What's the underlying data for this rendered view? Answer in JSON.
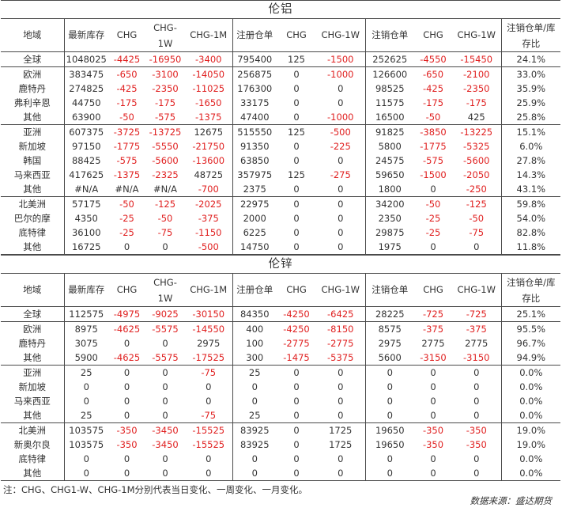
{
  "tables": [
    {
      "title": "伦铝",
      "headers": [
        "地域",
        "最新库存",
        "CHG",
        "CHG-1W",
        "CHG-1M",
        "注册仓单",
        "CHG",
        "CHG-1W",
        "注销仓单",
        "CHG",
        "CHG-1W",
        "注销仓单/库存比"
      ],
      "groups": [
        [
          [
            "全球",
            "1048025",
            "-4425",
            "-16950",
            "-3400",
            "795400",
            "125",
            "-1500",
            "252625",
            "-4550",
            "-15450",
            "24.1%"
          ]
        ],
        [
          [
            "欧洲",
            "383475",
            "-650",
            "-3100",
            "-14050",
            "256875",
            "0",
            "-1000",
            "126600",
            "-650",
            "-2100",
            "33.0%"
          ],
          [
            "鹿特丹",
            "274825",
            "-425",
            "-2350",
            "-11025",
            "176300",
            "0",
            "0",
            "98525",
            "-425",
            "-2350",
            "35.9%"
          ],
          [
            "弗利辛恩",
            "44750",
            "-175",
            "-175",
            "-1650",
            "33175",
            "0",
            "0",
            "11575",
            "-175",
            "-175",
            "25.9%"
          ],
          [
            "其他",
            "63900",
            "-50",
            "-575",
            "-1375",
            "47400",
            "0",
            "-1000",
            "16500",
            "-50",
            "425",
            "25.8%"
          ]
        ],
        [
          [
            "亚洲",
            "607375",
            "-3725",
            "-13725",
            "12675",
            "515550",
            "125",
            "-500",
            "91825",
            "-3850",
            "-13225",
            "15.1%"
          ],
          [
            "新加坡",
            "97150",
            "-1775",
            "-5550",
            "-21750",
            "91350",
            "0",
            "-225",
            "5800",
            "-1775",
            "-5325",
            "6.0%"
          ],
          [
            "韩国",
            "88425",
            "-575",
            "-5600",
            "-13600",
            "63850",
            "0",
            "0",
            "24575",
            "-575",
            "-5600",
            "27.8%"
          ],
          [
            "马来西亚",
            "417625",
            "-1375",
            "-2325",
            "48725",
            "357975",
            "125",
            "-275",
            "59650",
            "-1500",
            "-2050",
            "14.3%"
          ],
          [
            "其他",
            "#N/A",
            "#N/A",
            "#N/A",
            "-700",
            "2375",
            "0",
            "0",
            "1800",
            "0",
            "-250",
            "43.1%"
          ]
        ],
        [
          [
            "北美洲",
            "57175",
            "-50",
            "-125",
            "-2025",
            "22975",
            "0",
            "0",
            "34200",
            "-50",
            "-125",
            "59.8%"
          ],
          [
            "巴尔的摩",
            "4350",
            "-25",
            "-50",
            "-375",
            "2000",
            "0",
            "0",
            "2350",
            "-25",
            "-50",
            "54.0%"
          ],
          [
            "底特律",
            "36100",
            "-25",
            "-75",
            "-1150",
            "6225",
            "0",
            "0",
            "29875",
            "-25",
            "-75",
            "82.8%"
          ],
          [
            "其他",
            "16725",
            "0",
            "0",
            "-500",
            "14750",
            "0",
            "0",
            "1975",
            "0",
            "0",
            "11.8%"
          ]
        ]
      ]
    },
    {
      "title": "伦锌",
      "headers": [
        "地域",
        "最新库存",
        "CHG",
        "CHG-1W",
        "CHG-1M",
        "注册仓单",
        "CHG",
        "CHG-1W",
        "注销仓单",
        "CHG",
        "CHG-1W",
        "注销仓单/库存比"
      ],
      "groups": [
        [
          [
            "全球",
            "112575",
            "-4975",
            "-9025",
            "-30150",
            "84350",
            "-4250",
            "-6425",
            "28225",
            "-725",
            "-725",
            "25.1%"
          ]
        ],
        [
          [
            "欧洲",
            "8975",
            "-4625",
            "-5575",
            "-14550",
            "400",
            "-4250",
            "-8150",
            "8575",
            "-375",
            "-375",
            "95.5%"
          ],
          [
            "鹿特丹",
            "3075",
            "0",
            "0",
            "2975",
            "100",
            "-2775",
            "-2775",
            "2975",
            "2775",
            "2775",
            "96.7%"
          ],
          [
            "其他",
            "5900",
            "-4625",
            "-5575",
            "-17525",
            "300",
            "-1475",
            "-5375",
            "5600",
            "-3150",
            "-3150",
            "94.9%"
          ]
        ],
        [
          [
            "亚洲",
            "25",
            "0",
            "0",
            "-75",
            "25",
            "0",
            "0",
            "0",
            "0",
            "0",
            "0.0%"
          ],
          [
            "新加坡",
            "0",
            "0",
            "0",
            "0",
            "0",
            "0",
            "0",
            "0",
            "0",
            "0",
            "0.0%"
          ],
          [
            "马来西亚",
            "0",
            "0",
            "0",
            "0",
            "0",
            "0",
            "0",
            "0",
            "0",
            "0",
            "0.0%"
          ],
          [
            "其他",
            "25",
            "0",
            "0",
            "-75",
            "25",
            "0",
            "0",
            "0",
            "0",
            "0",
            "0.0%"
          ]
        ],
        [
          [
            "北美洲",
            "103575",
            "-350",
            "-3450",
            "-15525",
            "83925",
            "0",
            "1725",
            "19650",
            "-350",
            "-350",
            "19.0%"
          ],
          [
            "新奥尔良",
            "103575",
            "-350",
            "-3450",
            "-15525",
            "83925",
            "0",
            "1725",
            "19650",
            "-350",
            "-350",
            "19.0%"
          ],
          [
            "底特律",
            "0",
            "0",
            "0",
            "0",
            "0",
            "0",
            "0",
            "0",
            "0",
            "0",
            "0.0%"
          ],
          [
            "其他",
            "0",
            "0",
            "0",
            "0",
            "0",
            "0",
            "0",
            "0",
            "0",
            "0",
            "0.0%"
          ]
        ]
      ]
    }
  ],
  "note": "注：CHG、CHG1-W、CHG-1M分别代表当日变化、一周变化、一月变化。",
  "source": "数据来源：盛达期货",
  "colors": {
    "negative": "#e02020",
    "text": "#333333",
    "rule": "#4a4a4a"
  }
}
